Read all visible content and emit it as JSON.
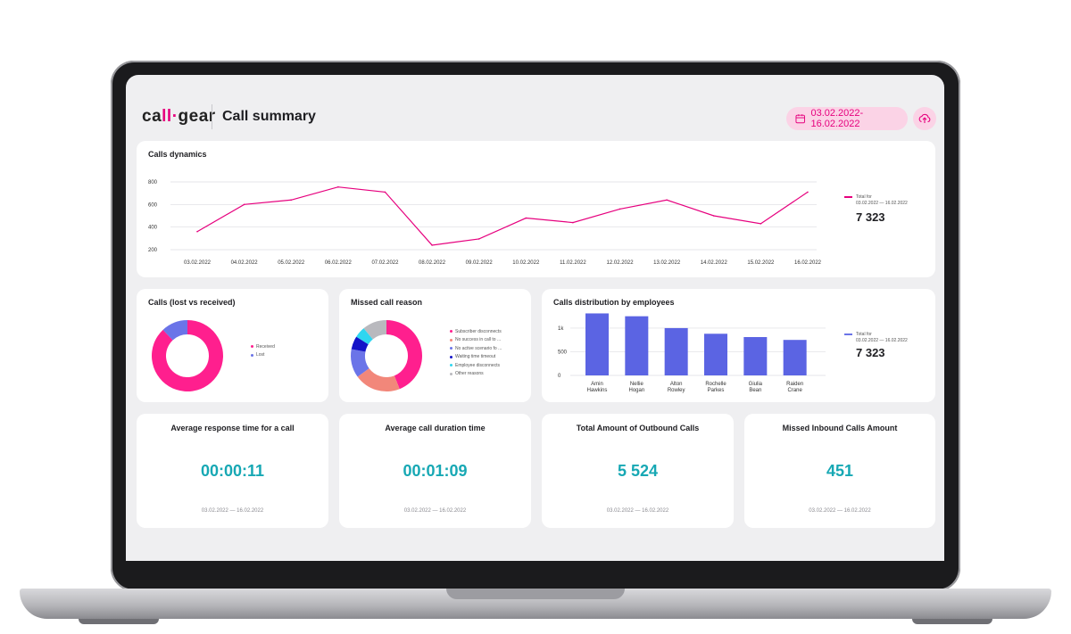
{
  "header": {
    "logo_text_1": "ca",
    "logo_mark": "ll·",
    "logo_text_2": "gear",
    "title": "Call summary",
    "date_range": "03.02.2022-16.02.2022",
    "date_icon": "calendar-icon",
    "upload_icon": "cloud-upload-icon",
    "accent_color": "#e6007e"
  },
  "calls_dynamics": {
    "title": "Calls dynamics",
    "legend_label": "Total for",
    "legend_range": "03.02.2022 — 16.02.2022",
    "total": "7 323"
  },
  "calls_lost_received": {
    "title": "Calls (lost vs received)",
    "legend": [
      {
        "label": "Received",
        "color": "#ff1f8e"
      },
      {
        "label": "Lost",
        "color": "#6b74e8"
      }
    ]
  },
  "missed_call_reason": {
    "title": "Missed call reason",
    "legend": [
      {
        "label": "Subscriber disconnects",
        "color": "#ff1f8e"
      },
      {
        "label": "No success in call to ...",
        "color": "#f2877a"
      },
      {
        "label": "No active scenario fo ...",
        "color": "#6b74e8"
      },
      {
        "label": "Waiting time timeout",
        "color": "#1414c8"
      },
      {
        "label": "Employee disconnects",
        "color": "#2ed6f0"
      },
      {
        "label": "Other reasons",
        "color": "#b9b9be"
      }
    ]
  },
  "calls_by_employees": {
    "title": "Calls distribution by employees",
    "legend_label": "Total for",
    "legend_range": "03.02.2022 — 16.02.2022",
    "total": "7 323"
  },
  "kpis": [
    {
      "title": "Average response time for a call",
      "value": "00:00:11",
      "date": "03.02.2022 — 16.02.2022"
    },
    {
      "title": "Average call duration time",
      "value": "00:01:09",
      "date": "03.02.2022 — 16.02.2022"
    },
    {
      "title": "Total Amount of Outbound Calls",
      "value": "5 524",
      "date": "03.02.2022 — 16.02.2022"
    },
    {
      "title": "Missed Inbound Calls Amount",
      "value": "451",
      "date": "03.02.2022 — 16.02.2022"
    }
  ],
  "chart_data": [
    {
      "type": "line",
      "title": "Calls dynamics",
      "x": [
        "03.02.2022",
        "04.02.2022",
        "05.02.2022",
        "06.02.2022",
        "07.02.2022",
        "08.02.2022",
        "09.02.2022",
        "10.02.2022",
        "11.02.2022",
        "12.02.2022",
        "13.02.2022",
        "14.02.2022",
        "15.02.2022",
        "16.02.2022"
      ],
      "series": [
        {
          "name": "Total for",
          "values": [
            360,
            600,
            640,
            755,
            710,
            240,
            295,
            480,
            440,
            560,
            640,
            500,
            430,
            710
          ]
        }
      ],
      "yticks": [
        "800",
        "600",
        "400",
        "200"
      ],
      "ylim": [
        200,
        800
      ],
      "grid": true,
      "legend_position": "right"
    },
    {
      "type": "pie",
      "title": "Calls (lost vs received)",
      "categories": [
        "Received",
        "Lost"
      ],
      "values": [
        88,
        12
      ],
      "donut": true
    },
    {
      "type": "pie",
      "title": "Missed call reason",
      "categories": [
        "Subscriber disconnects",
        "No success in call to ...",
        "No active scenario fo ...",
        "Waiting time timeout",
        "Employee disconnects",
        "Other reasons"
      ],
      "values": [
        44,
        21,
        13,
        6,
        5,
        11
      ],
      "donut": true
    },
    {
      "type": "bar",
      "title": "Calls distribution by employees",
      "categories": [
        "Amin Hawkins",
        "Nellie Hogan",
        "Alton Rowley",
        "Rochelle Parkes",
        "Giulia Bean",
        "Raiden Crane"
      ],
      "values": [
        1310,
        1250,
        1000,
        880,
        810,
        750
      ],
      "yticks": [
        "1k",
        "500",
        "0"
      ],
      "ylim": [
        0,
        1300
      ],
      "grid": true,
      "legend_position": "right"
    }
  ]
}
